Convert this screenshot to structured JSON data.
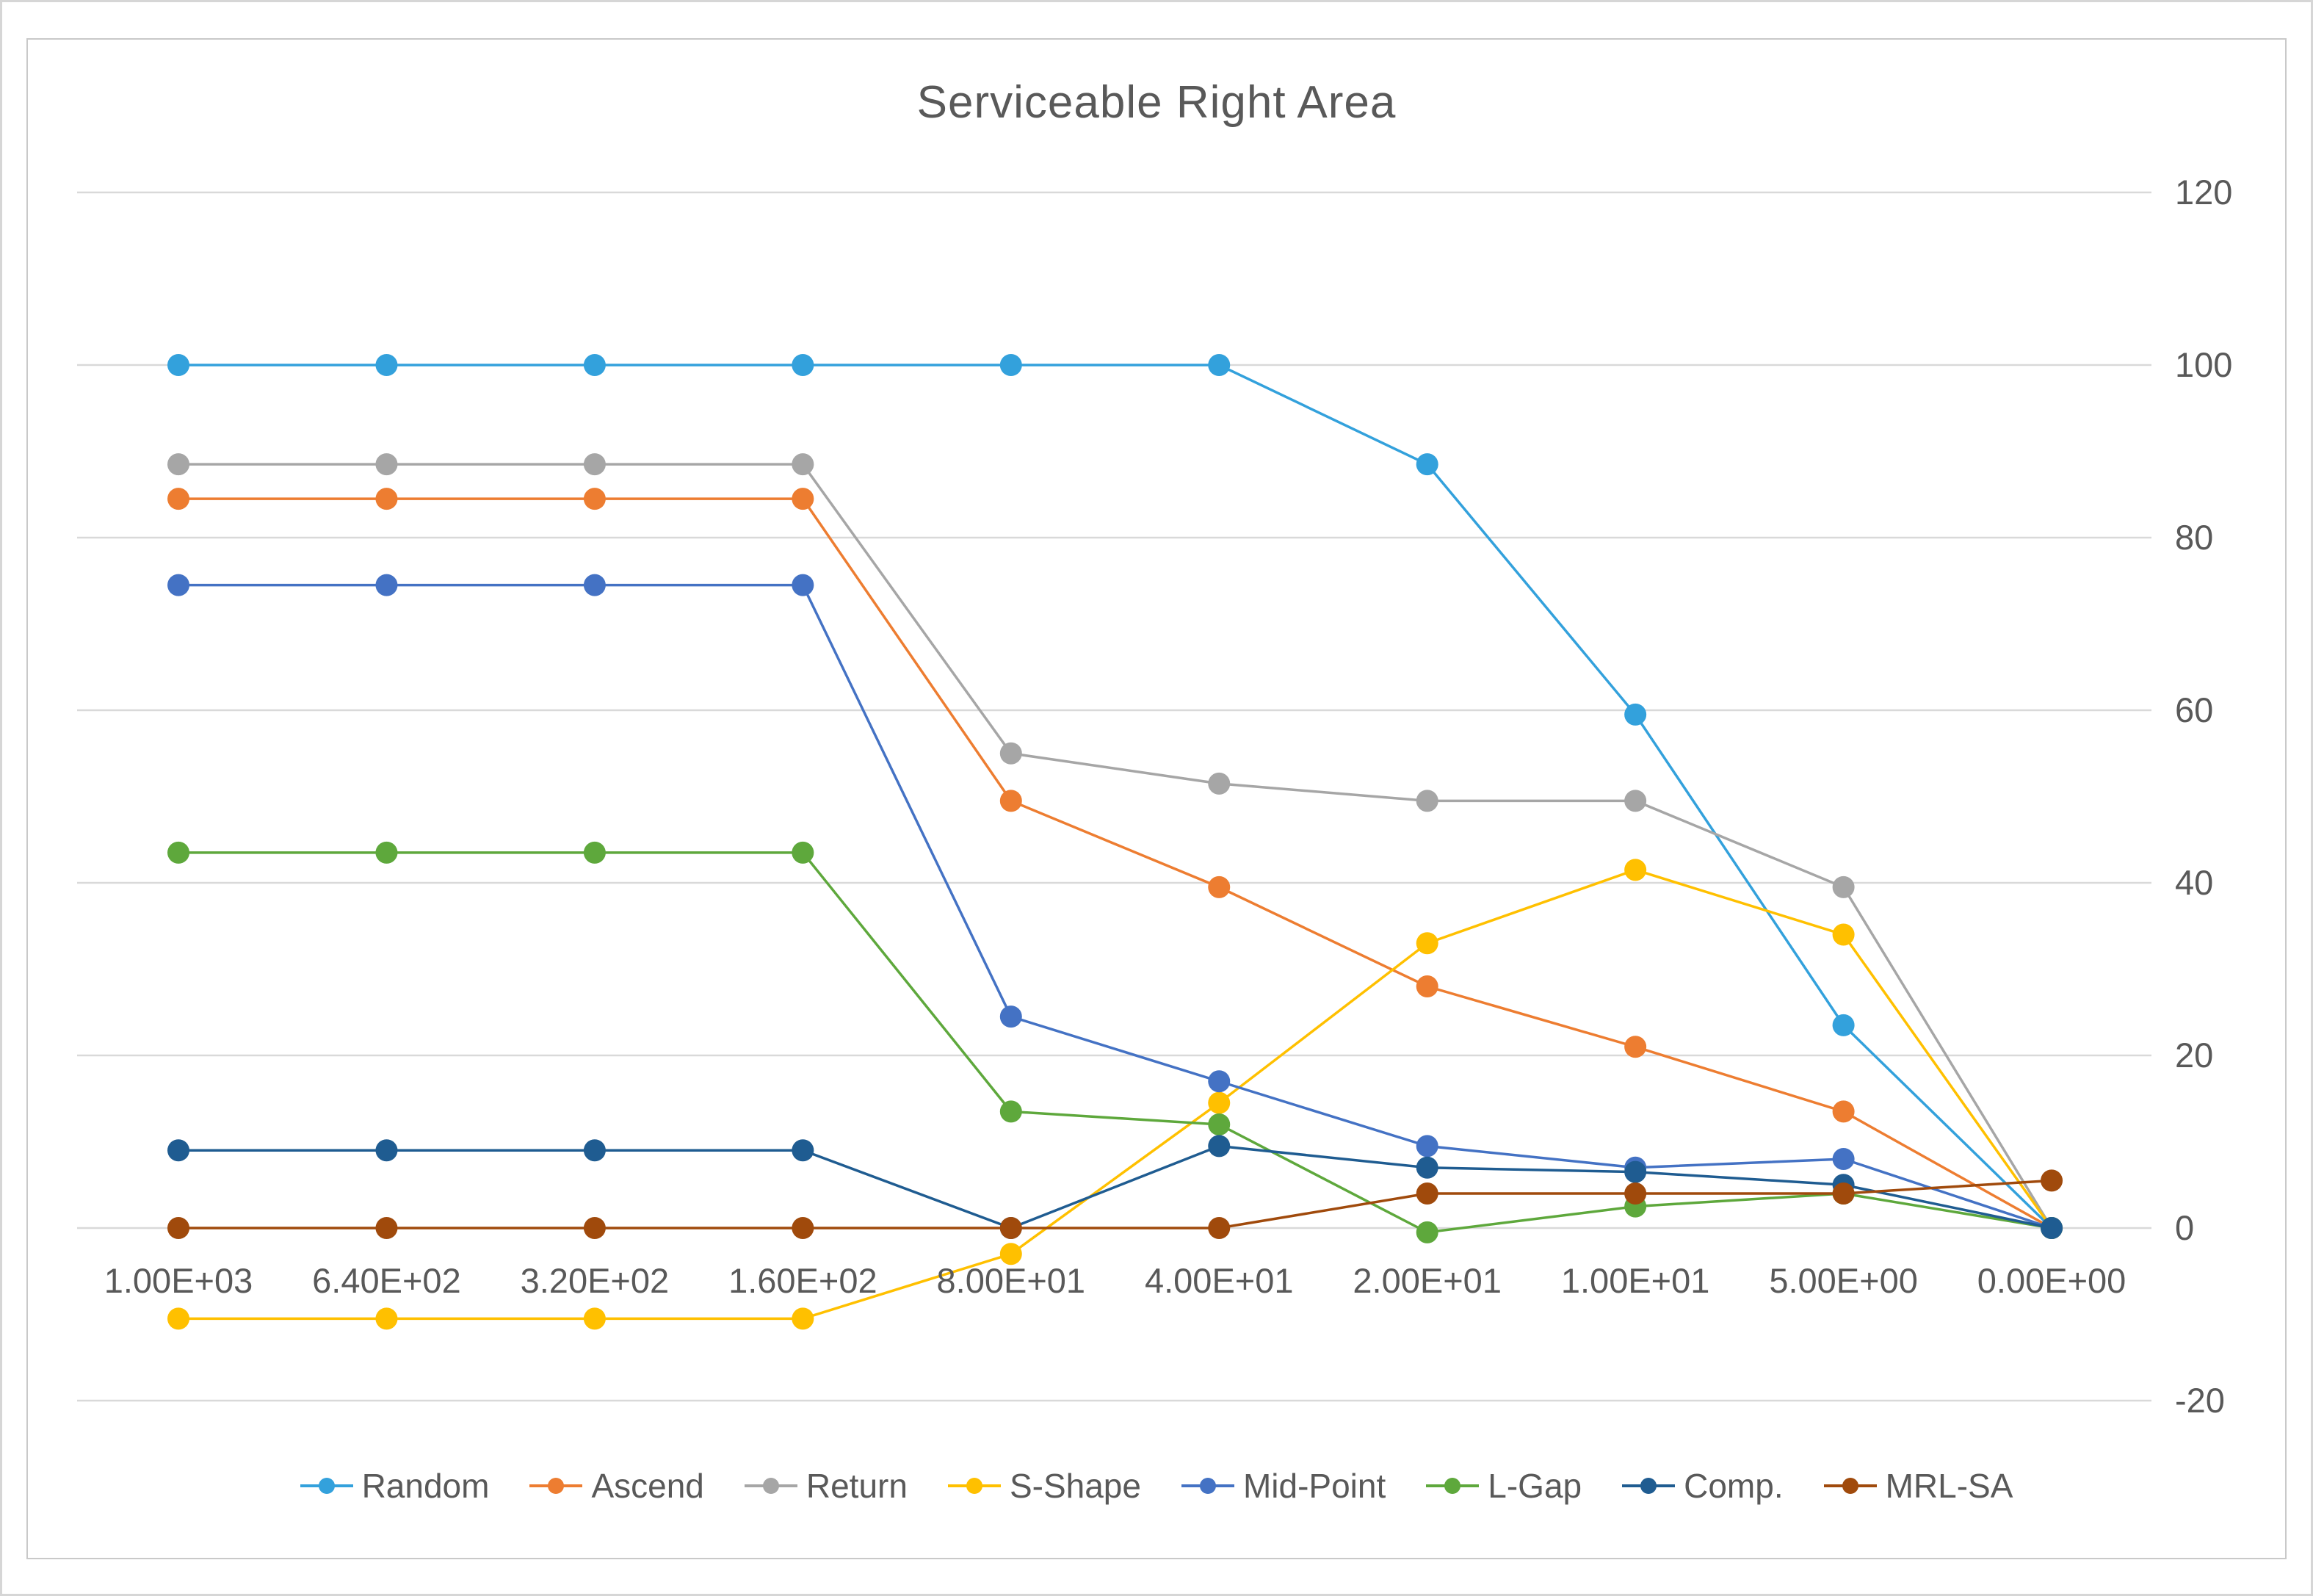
{
  "title": "Serviceable Right Area",
  "chart_data": {
    "type": "line",
    "title": "Serviceable Right Area",
    "xlabel": "",
    "ylabel": "",
    "categories": [
      "1.00E+03",
      "6.40E+02",
      "3.20E+02",
      "1.60E+02",
      "8.00E+01",
      "4.00E+01",
      "2.00E+01",
      "1.00E+01",
      "5.00E+00",
      "0.00E+00"
    ],
    "y_ticks": [
      120,
      100,
      80,
      60,
      40,
      20,
      0,
      -20
    ],
    "ylim": [
      -20,
      120
    ],
    "grid": true,
    "y_axis_side": "right",
    "legend_position": "bottom",
    "marker": "circle",
    "series": [
      {
        "name": "Random",
        "color": "#33A1DC",
        "values": [
          100,
          100,
          100,
          100,
          100,
          100,
          88.5,
          59.5,
          23.5,
          0
        ]
      },
      {
        "name": "Ascend",
        "color": "#ED7D31",
        "values": [
          84.5,
          84.5,
          84.5,
          84.5,
          49.5,
          39.5,
          28,
          21,
          13.5,
          0
        ]
      },
      {
        "name": "Return",
        "color": "#A6A6A6",
        "values": [
          88.5,
          88.5,
          88.5,
          88.5,
          55,
          51.5,
          49.5,
          49.5,
          39.5,
          0
        ]
      },
      {
        "name": "S-Shape",
        "color": "#FFC000",
        "values": [
          -10.5,
          -10.5,
          -10.5,
          -10.5,
          -3,
          14.5,
          33,
          41.5,
          34,
          0
        ]
      },
      {
        "name": "Mid-Point",
        "color": "#4472C4",
        "values": [
          74.5,
          74.5,
          74.5,
          74.5,
          24.5,
          17,
          9.5,
          7,
          8,
          0
        ]
      },
      {
        "name": "L-Gap",
        "color": "#5EA83C",
        "values": [
          43.5,
          43.5,
          43.5,
          43.5,
          13.5,
          12,
          -0.5,
          2.5,
          4,
          0
        ]
      },
      {
        "name": "Comp.",
        "color": "#1F5C91",
        "values": [
          9,
          9,
          9,
          9,
          0,
          9.5,
          7,
          6.5,
          5,
          0
        ]
      },
      {
        "name": "MRL-SA",
        "color": "#A04A0C",
        "values": [
          0,
          0,
          0,
          0,
          0,
          0,
          4,
          4,
          4,
          5.5
        ]
      }
    ]
  },
  "colors": {
    "gridline": "#D9D9D9",
    "axis_text": "#595959",
    "title_text": "#595959",
    "frame_border": "#C9C9C9"
  }
}
